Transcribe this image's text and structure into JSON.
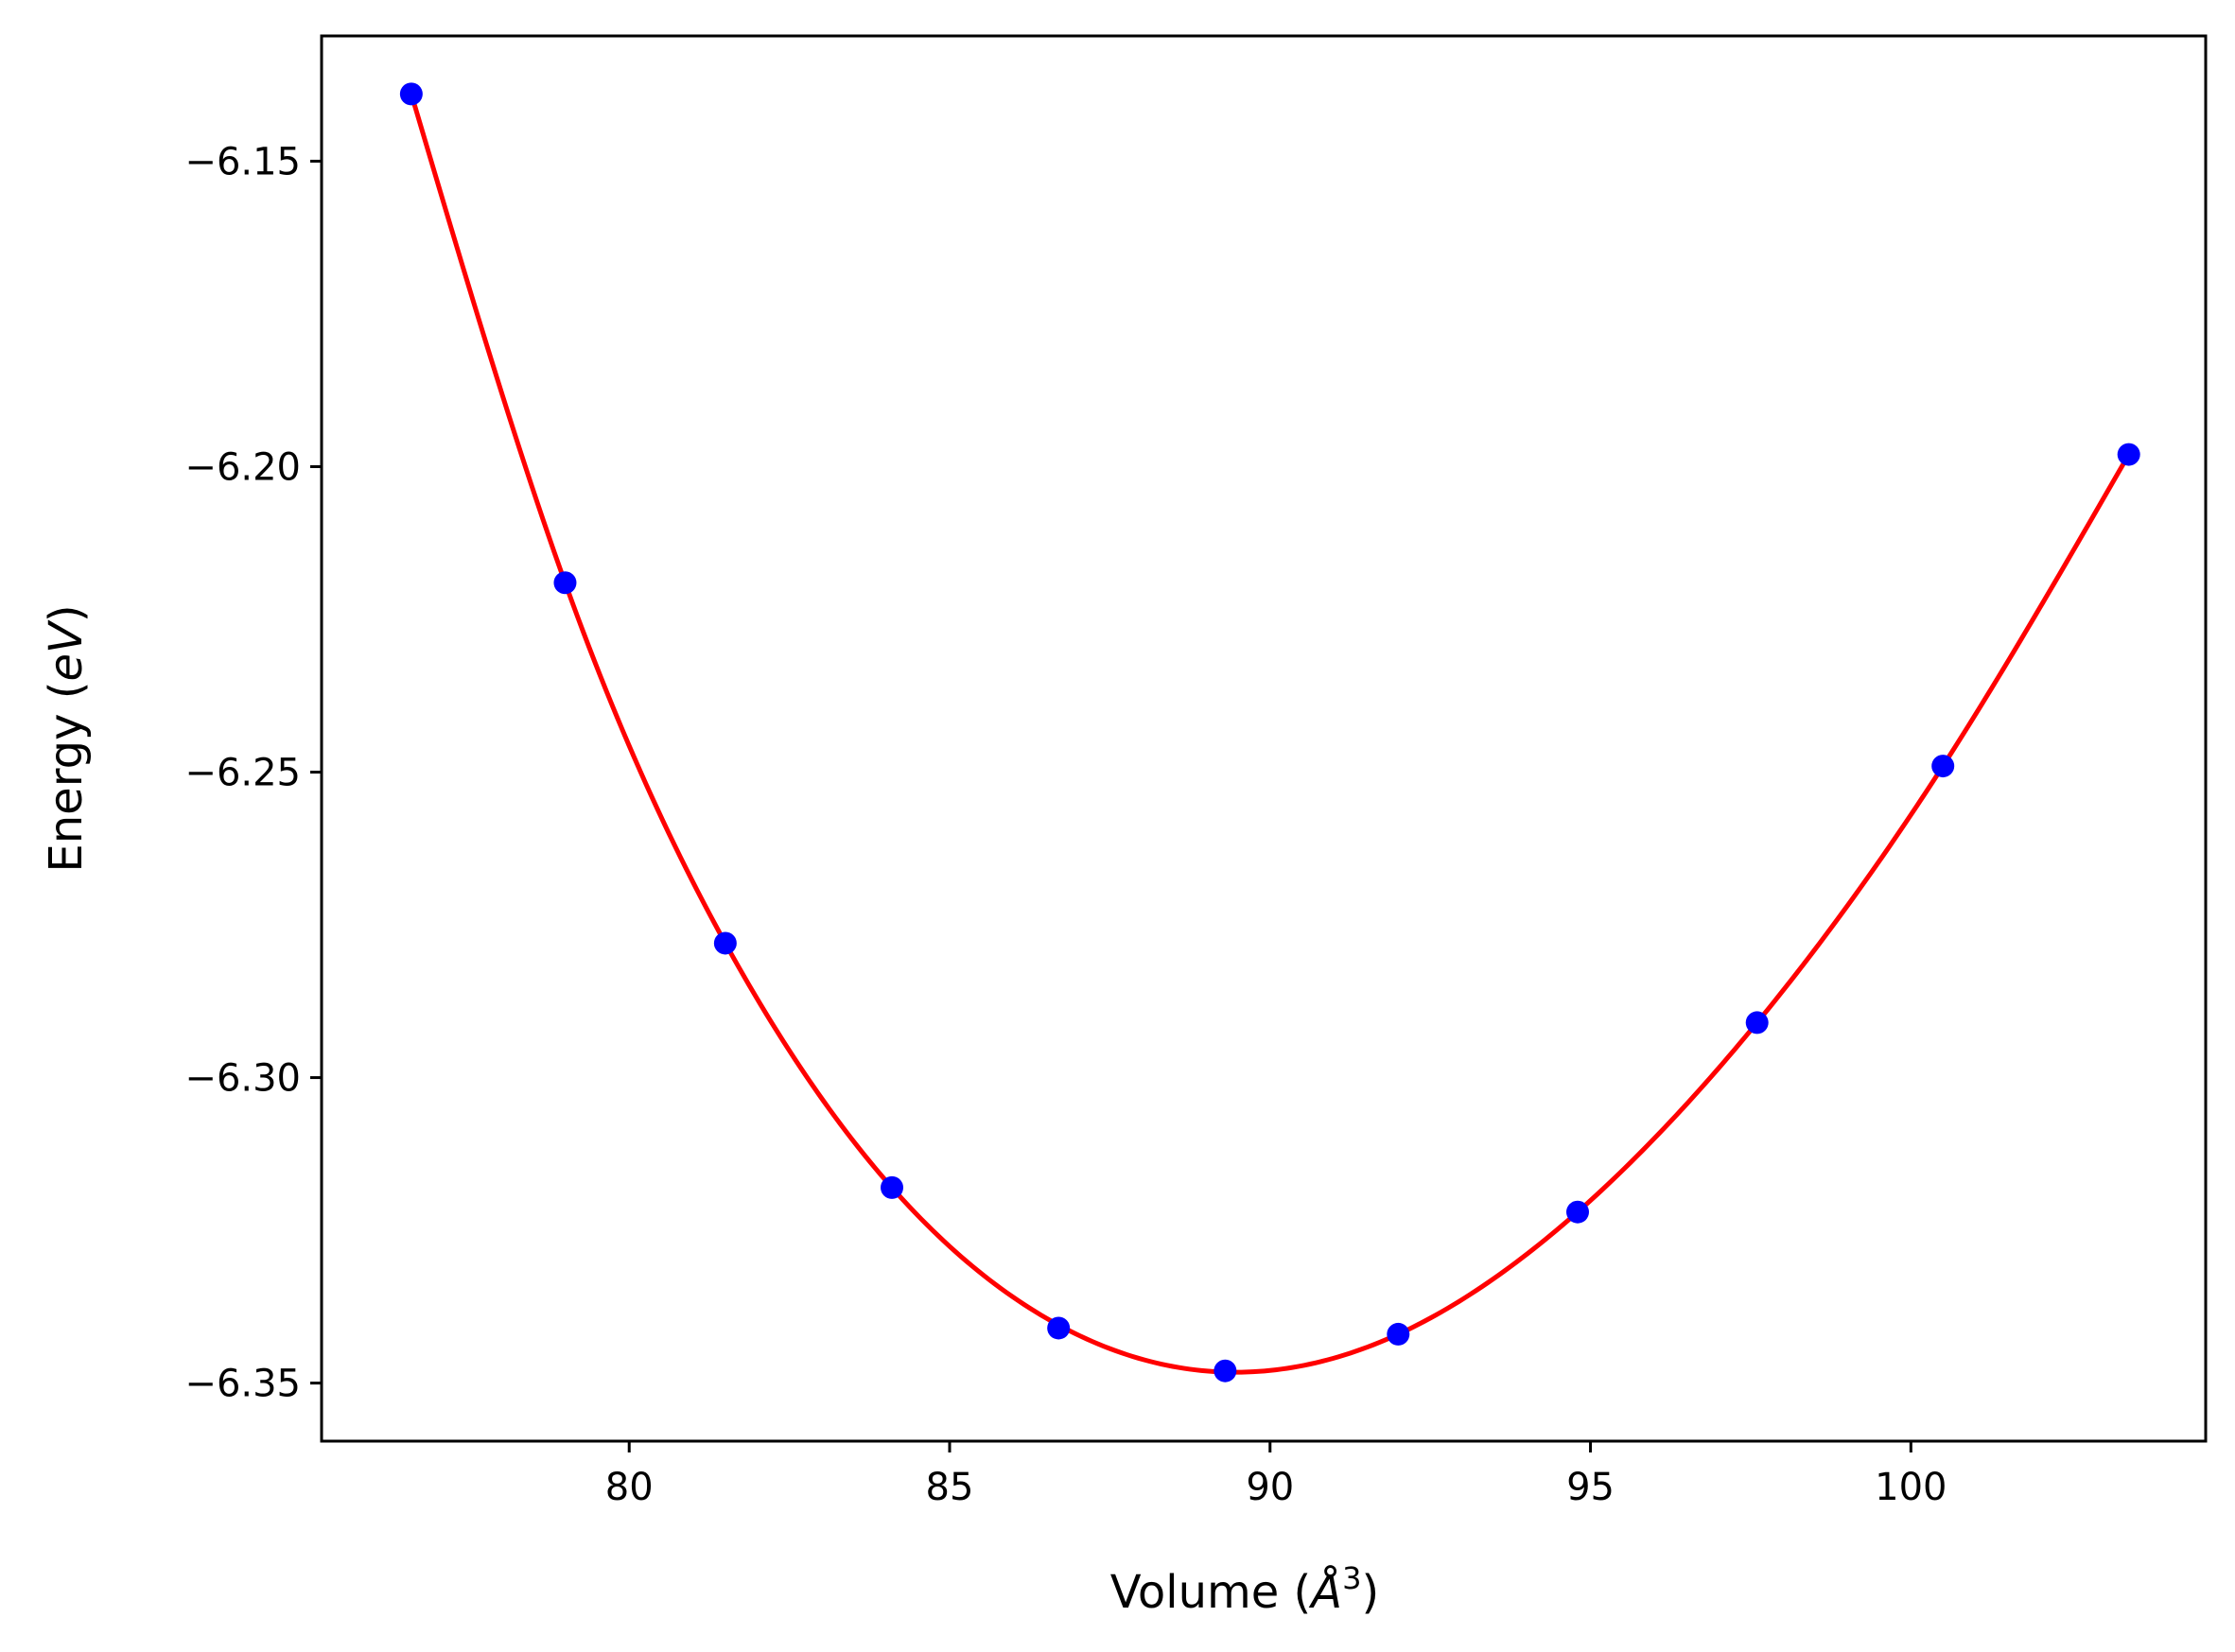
{
  "chart_data": {
    "type": "scatter",
    "title": "",
    "xlabel": "Volume ($\\AA^3$)",
    "xlabel_parts": {
      "prefix": "Volume (",
      "symbol": "Å",
      "superscript": "3",
      "suffix": ")"
    },
    "ylabel": "Energy ($eV$)",
    "ylabel_parts": {
      "prefix": "Energy (",
      "italic": "eV",
      "suffix": ")"
    },
    "xlim": [
      75.2,
      104.6
    ],
    "ylim": [
      -6.3595,
      -6.1295
    ],
    "xticks": [
      80,
      85,
      90,
      95,
      100
    ],
    "xtick_labels": [
      "80",
      "85",
      "90",
      "95",
      "100"
    ],
    "yticks": [
      -6.15,
      -6.2,
      -6.25,
      -6.3,
      -6.35
    ],
    "ytick_labels": [
      "−6.15",
      "−6.20",
      "−6.25",
      "−6.30",
      "−6.35"
    ],
    "grid": false,
    "series": [
      {
        "kind": "points",
        "color": "#0000ff",
        "x": [
          76.6,
          79.0,
          81.5,
          84.1,
          86.7,
          89.3,
          92.0,
          94.8,
          97.6,
          100.5,
          103.4
        ],
        "y": [
          -6.139,
          -6.219,
          -6.278,
          -6.318,
          -6.341,
          -6.348,
          -6.342,
          -6.322,
          -6.291,
          -6.249,
          -6.198
        ]
      },
      {
        "kind": "fit-curve",
        "color": "#ff0000",
        "x_range": [
          76.6,
          103.4
        ],
        "spline_x": [
          76.6,
          79.0,
          81.5,
          84.1,
          86.7,
          89.3,
          92.0,
          94.8,
          97.6,
          100.5,
          103.4
        ],
        "spline_y": [
          -6.139,
          -6.219,
          -6.278,
          -6.318,
          -6.3405,
          -6.3482,
          -6.342,
          -6.322,
          -6.291,
          -6.249,
          -6.198
        ]
      }
    ]
  }
}
